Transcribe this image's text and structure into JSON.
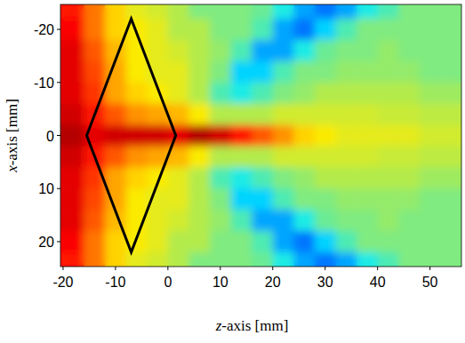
{
  "chart_data": {
    "type": "heatmap",
    "x_label": "z-axis [mm]",
    "y_label": "x-axis [mm]",
    "xlim": [
      -20.5,
      56
    ],
    "ylim": [
      -24.7,
      24.7
    ],
    "xticks": [
      -20,
      -10,
      0,
      10,
      20,
      30,
      40,
      50
    ],
    "yticks": [
      -20,
      -10,
      0,
      10,
      20
    ],
    "color_range": [
      0,
      1
    ],
    "x_edges": [
      -20.5,
      -16,
      -12,
      -8,
      -4,
      0,
      4,
      8,
      12,
      16,
      20,
      24,
      28,
      32,
      36,
      40,
      44,
      48,
      52,
      56
    ],
    "y_edges": [
      -24.7,
      -22,
      -18,
      -14,
      -10,
      -6,
      -2,
      2,
      6,
      10,
      14,
      18,
      22,
      24.7
    ],
    "cells": [
      [
        0.85,
        0.75,
        0.65,
        0.6,
        0.58,
        0.55,
        0.5,
        0.5,
        0.5,
        0.48,
        0.4,
        0.3,
        0.25,
        0.3,
        0.4,
        0.45,
        0.5,
        0.5,
        0.5
      ],
      [
        0.88,
        0.75,
        0.65,
        0.62,
        0.6,
        0.55,
        0.55,
        0.5,
        0.5,
        0.45,
        0.3,
        0.25,
        0.35,
        0.45,
        0.5,
        0.5,
        0.5,
        0.5,
        0.5
      ],
      [
        0.9,
        0.78,
        0.68,
        0.62,
        0.6,
        0.58,
        0.55,
        0.52,
        0.45,
        0.3,
        0.3,
        0.4,
        0.48,
        0.5,
        0.5,
        0.52,
        0.5,
        0.5,
        0.5
      ],
      [
        0.9,
        0.8,
        0.7,
        0.62,
        0.6,
        0.6,
        0.55,
        0.5,
        0.35,
        0.35,
        0.45,
        0.5,
        0.5,
        0.52,
        0.52,
        0.52,
        0.52,
        0.5,
        0.5
      ],
      [
        0.9,
        0.82,
        0.7,
        0.65,
        0.62,
        0.6,
        0.55,
        0.45,
        0.4,
        0.45,
        0.5,
        0.52,
        0.55,
        0.55,
        0.55,
        0.55,
        0.55,
        0.53,
        0.53
      ],
      [
        0.92,
        0.85,
        0.78,
        0.72,
        0.7,
        0.68,
        0.62,
        0.55,
        0.55,
        0.55,
        0.58,
        0.58,
        0.58,
        0.58,
        0.58,
        0.57,
        0.57,
        0.56,
        0.56
      ],
      [
        0.95,
        0.9,
        0.92,
        0.92,
        0.92,
        0.9,
        0.95,
        0.92,
        0.85,
        0.78,
        0.72,
        0.65,
        0.62,
        0.6,
        0.6,
        0.6,
        0.6,
        0.58,
        0.58
      ],
      [
        0.92,
        0.85,
        0.78,
        0.72,
        0.7,
        0.68,
        0.62,
        0.55,
        0.55,
        0.55,
        0.58,
        0.58,
        0.58,
        0.58,
        0.58,
        0.57,
        0.57,
        0.56,
        0.56
      ],
      [
        0.9,
        0.82,
        0.7,
        0.65,
        0.62,
        0.6,
        0.55,
        0.45,
        0.4,
        0.45,
        0.5,
        0.52,
        0.55,
        0.55,
        0.55,
        0.55,
        0.55,
        0.53,
        0.53
      ],
      [
        0.9,
        0.8,
        0.7,
        0.62,
        0.6,
        0.6,
        0.55,
        0.5,
        0.35,
        0.35,
        0.45,
        0.5,
        0.5,
        0.52,
        0.52,
        0.52,
        0.52,
        0.5,
        0.5
      ],
      [
        0.9,
        0.78,
        0.68,
        0.62,
        0.6,
        0.58,
        0.55,
        0.52,
        0.45,
        0.3,
        0.3,
        0.4,
        0.48,
        0.5,
        0.5,
        0.52,
        0.5,
        0.5,
        0.5
      ],
      [
        0.88,
        0.75,
        0.65,
        0.62,
        0.6,
        0.55,
        0.55,
        0.5,
        0.5,
        0.45,
        0.3,
        0.25,
        0.35,
        0.45,
        0.5,
        0.5,
        0.5,
        0.5,
        0.5
      ],
      [
        0.85,
        0.75,
        0.65,
        0.6,
        0.58,
        0.55,
        0.5,
        0.5,
        0.5,
        0.48,
        0.4,
        0.3,
        0.25,
        0.3,
        0.4,
        0.45,
        0.5,
        0.5,
        0.5
      ]
    ],
    "outline": [
      [
        -15.5,
        0
      ],
      [
        -7,
        -22
      ],
      [
        1.5,
        0
      ],
      [
        -7,
        22
      ]
    ]
  }
}
